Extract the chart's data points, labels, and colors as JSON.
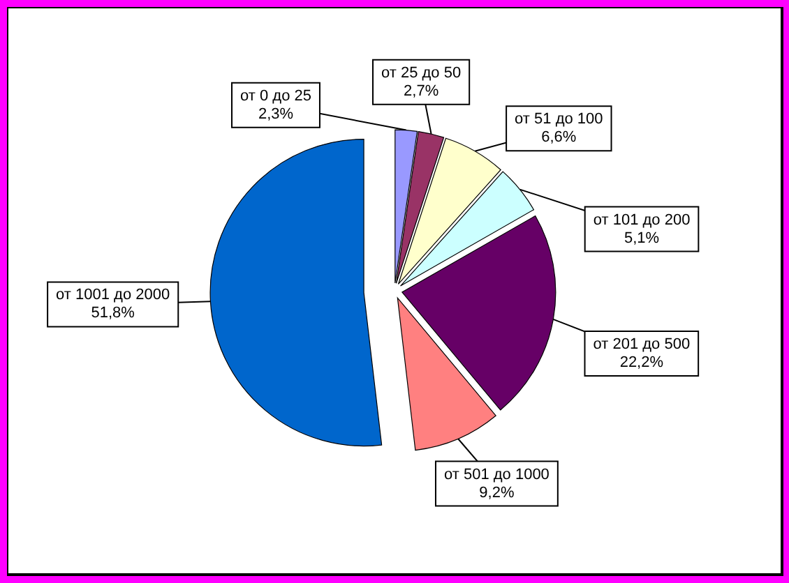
{
  "chart_data": {
    "type": "pie",
    "categories": [
      "от 0 до 25",
      "от 25 до 50",
      "от 51 до 100",
      "от 101 до 200",
      "от 201 до 500",
      "от 501 до 1000",
      "от 1001 до 2000"
    ],
    "values": [
      2.3,
      2.7,
      6.6,
      5.1,
      22.2,
      9.2,
      51.8
    ],
    "colors": [
      "#9999ff",
      "#993366",
      "#ffffcc",
      "#ccffff",
      "#660066",
      "#ff8080",
      "#0066cc"
    ],
    "value_labels": [
      "2,3%",
      "2,7%",
      "6,6%",
      "5,1%",
      "22,2%",
      "9,2%",
      "51,8%"
    ]
  }
}
